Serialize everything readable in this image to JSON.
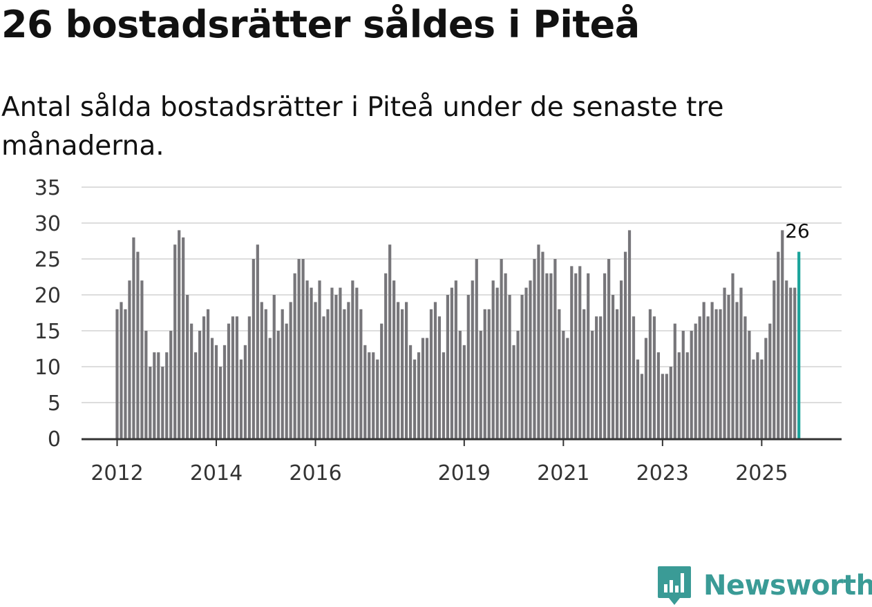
{
  "header": {
    "title": "26 bostadsrätter såldes i Piteå",
    "subtitle": "Antal sålda bostadsrätter i Piteå under de senaste tre månaderna."
  },
  "brand": {
    "name": "Newsworthy",
    "color": "#3a9b96"
  },
  "colors": {
    "bar": "#77767a",
    "highlight": "#1aa39a",
    "grid": "#dddddd",
    "axis": "#333333",
    "text": "#333333"
  },
  "chart_data": {
    "type": "bar",
    "title": "26 bostadsrätter såldes i Piteå",
    "subtitle": "Antal sålda bostadsrätter i Piteå under de senaste tre månaderna.",
    "xlabel": "",
    "ylabel": "",
    "ylim": [
      0,
      35
    ],
    "yticks": [
      0,
      5,
      10,
      15,
      20,
      25,
      30,
      35
    ],
    "grid": true,
    "x_start": "2012-01",
    "xticks": [
      {
        "label": "2012",
        "index": 0
      },
      {
        "label": "2014",
        "index": 24
      },
      {
        "label": "2016",
        "index": 48
      },
      {
        "label": "2019",
        "index": 84
      },
      {
        "label": "2021",
        "index": 108
      },
      {
        "label": "2023",
        "index": 132
      },
      {
        "label": "2025",
        "index": 156
      }
    ],
    "values": [
      18,
      19,
      18,
      22,
      28,
      26,
      22,
      15,
      10,
      12,
      12,
      10,
      12,
      15,
      27,
      29,
      28,
      20,
      16,
      12,
      15,
      17,
      18,
      14,
      13,
      10,
      13,
      16,
      17,
      17,
      11,
      13,
      17,
      25,
      27,
      19,
      18,
      14,
      20,
      15,
      18,
      16,
      19,
      23,
      25,
      25,
      22,
      21,
      19,
      22,
      17,
      18,
      21,
      20,
      21,
      18,
      19,
      22,
      21,
      18,
      13,
      12,
      12,
      11,
      16,
      23,
      27,
      22,
      19,
      18,
      19,
      13,
      11,
      12,
      14,
      14,
      18,
      19,
      17,
      12,
      20,
      21,
      22,
      15,
      13,
      20,
      22,
      25,
      15,
      18,
      18,
      22,
      21,
      25,
      23,
      20,
      13,
      15,
      20,
      21,
      22,
      25,
      27,
      26,
      23,
      23,
      25,
      18,
      15,
      14,
      24,
      23,
      24,
      18,
      23,
      15,
      17,
      17,
      23,
      25,
      20,
      18,
      22,
      26,
      29,
      17,
      11,
      9,
      14,
      18,
      17,
      12,
      9,
      9,
      10,
      16,
      12,
      15,
      12,
      15,
      16,
      17,
      19,
      17,
      19,
      18,
      18,
      21,
      20,
      23,
      19,
      21,
      17,
      15,
      11,
      12,
      11,
      14,
      16,
      22,
      26,
      29,
      22,
      21,
      21,
      26
    ],
    "highlight_last": true,
    "annotation": {
      "label": "26",
      "index": 165
    }
  }
}
